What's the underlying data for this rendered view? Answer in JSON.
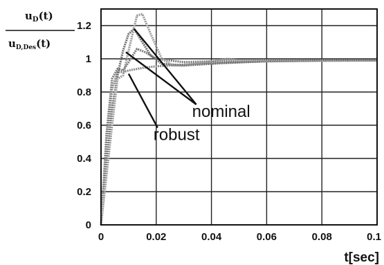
{
  "chart_data": {
    "type": "line",
    "xlabel": "t[sec]",
    "ylabel": {
      "numerator": "u",
      "numerator_sub": "D",
      "numerator_arg": "(t)",
      "denominator": "u",
      "denominator_sub": "D,Des",
      "denominator_arg": "(t)"
    },
    "xlim": [
      0,
      0.1
    ],
    "ylim": [
      0,
      1.3
    ],
    "x_ticks": [
      "0",
      "0.02",
      "0.04",
      "0.06",
      "0.08",
      "0.1"
    ],
    "x_tick_values": [
      0,
      0.02,
      0.04,
      0.06,
      0.08,
      0.1
    ],
    "y_ticks": [
      "0",
      "0.2",
      "0.4",
      "0.6",
      "0.8",
      "1",
      "1.2"
    ],
    "y_tick_values": [
      0,
      0.2,
      0.4,
      0.6,
      0.8,
      1.0,
      1.2
    ],
    "grid": true,
    "series": [
      {
        "values": [
          [
            0,
            0
          ],
          [
            0.002,
            0.5
          ],
          [
            0.004,
            0.82
          ],
          [
            0.006,
            0.92
          ],
          [
            0.008,
            0.92
          ],
          [
            0.01,
            0.93
          ],
          [
            0.015,
            0.945
          ],
          [
            0.02,
            0.955
          ],
          [
            0.03,
            0.965
          ],
          [
            0.04,
            0.975
          ],
          [
            0.06,
            0.985
          ],
          [
            0.08,
            0.988
          ],
          [
            0.1,
            0.99
          ]
        ]
      },
      {
        "values": [
          [
            0,
            0
          ],
          [
            0.002,
            0.55
          ],
          [
            0.004,
            0.88
          ],
          [
            0.006,
            0.94
          ],
          [
            0.008,
            0.93
          ],
          [
            0.01,
            0.98
          ],
          [
            0.013,
            1.06
          ],
          [
            0.016,
            1.04
          ],
          [
            0.02,
            1.0
          ],
          [
            0.03,
            0.98
          ],
          [
            0.05,
            0.99
          ],
          [
            0.07,
            0.99
          ],
          [
            0.1,
            0.99
          ]
        ]
      },
      {
        "values": [
          [
            0,
            0
          ],
          [
            0.002,
            0.35
          ],
          [
            0.004,
            0.7
          ],
          [
            0.006,
            0.9
          ],
          [
            0.008,
            1.05
          ],
          [
            0.01,
            1.15
          ],
          [
            0.012,
            1.18
          ],
          [
            0.015,
            1.1
          ],
          [
            0.018,
            1.02
          ],
          [
            0.022,
            0.97
          ],
          [
            0.03,
            0.96
          ],
          [
            0.045,
            0.975
          ],
          [
            0.06,
            0.985
          ],
          [
            0.08,
            0.99
          ],
          [
            0.1,
            0.99
          ]
        ]
      },
      {
        "values": [
          [
            0,
            0
          ],
          [
            0.002,
            0.3
          ],
          [
            0.004,
            0.6
          ],
          [
            0.006,
            0.88
          ],
          [
            0.008,
            0.9
          ],
          [
            0.01,
            1.05
          ],
          [
            0.013,
            1.26
          ],
          [
            0.015,
            1.27
          ],
          [
            0.018,
            1.15
          ],
          [
            0.022,
            1.0
          ],
          [
            0.026,
            0.96
          ],
          [
            0.03,
            0.96
          ],
          [
            0.04,
            0.985
          ],
          [
            0.046,
            1.0
          ],
          [
            0.05,
            0.99
          ],
          [
            0.06,
            0.985
          ],
          [
            0.08,
            0.99
          ],
          [
            0.1,
            0.99
          ]
        ]
      }
    ],
    "annotations": [
      {
        "text": "nominal",
        "x": 0.033,
        "y": 0.65,
        "arrow_to": [
          [
            0.012,
            1.18
          ],
          [
            0.009,
            1.04
          ]
        ]
      },
      {
        "text": "robust",
        "x": 0.019,
        "y": 0.51,
        "arrow_to": [
          [
            0.01,
            0.91
          ]
        ]
      }
    ]
  }
}
